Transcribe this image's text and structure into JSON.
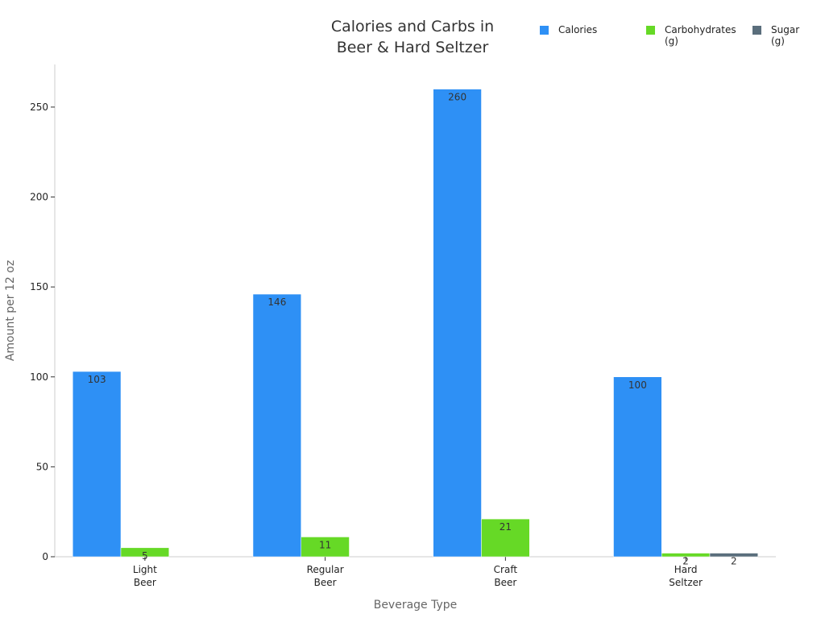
{
  "chart_data": {
    "type": "bar",
    "title": "Calories and Carbs in Beer & Hard Seltzer",
    "x_label": "Beverage Type",
    "y_label": "Amount per 12 oz",
    "categories": [
      "Light Beer",
      "Regular Beer",
      "Craft Beer",
      "Hard Seltzer"
    ],
    "series": [
      {
        "name": "Calories",
        "color": "#2e90f5",
        "values": [
          103,
          146,
          260,
          100
        ]
      },
      {
        "name": "Carbohydrates (g)",
        "color": "#66d926",
        "values": [
          5,
          11,
          21,
          2
        ]
      },
      {
        "name": "Sugar (g)",
        "color": "#5a6e7c",
        "values": [
          null,
          null,
          null,
          2
        ]
      }
    ],
    "ylim": [
      0,
      273.7
    ],
    "yticks": [
      0,
      50,
      100,
      150,
      200,
      250
    ],
    "grid": false
  }
}
